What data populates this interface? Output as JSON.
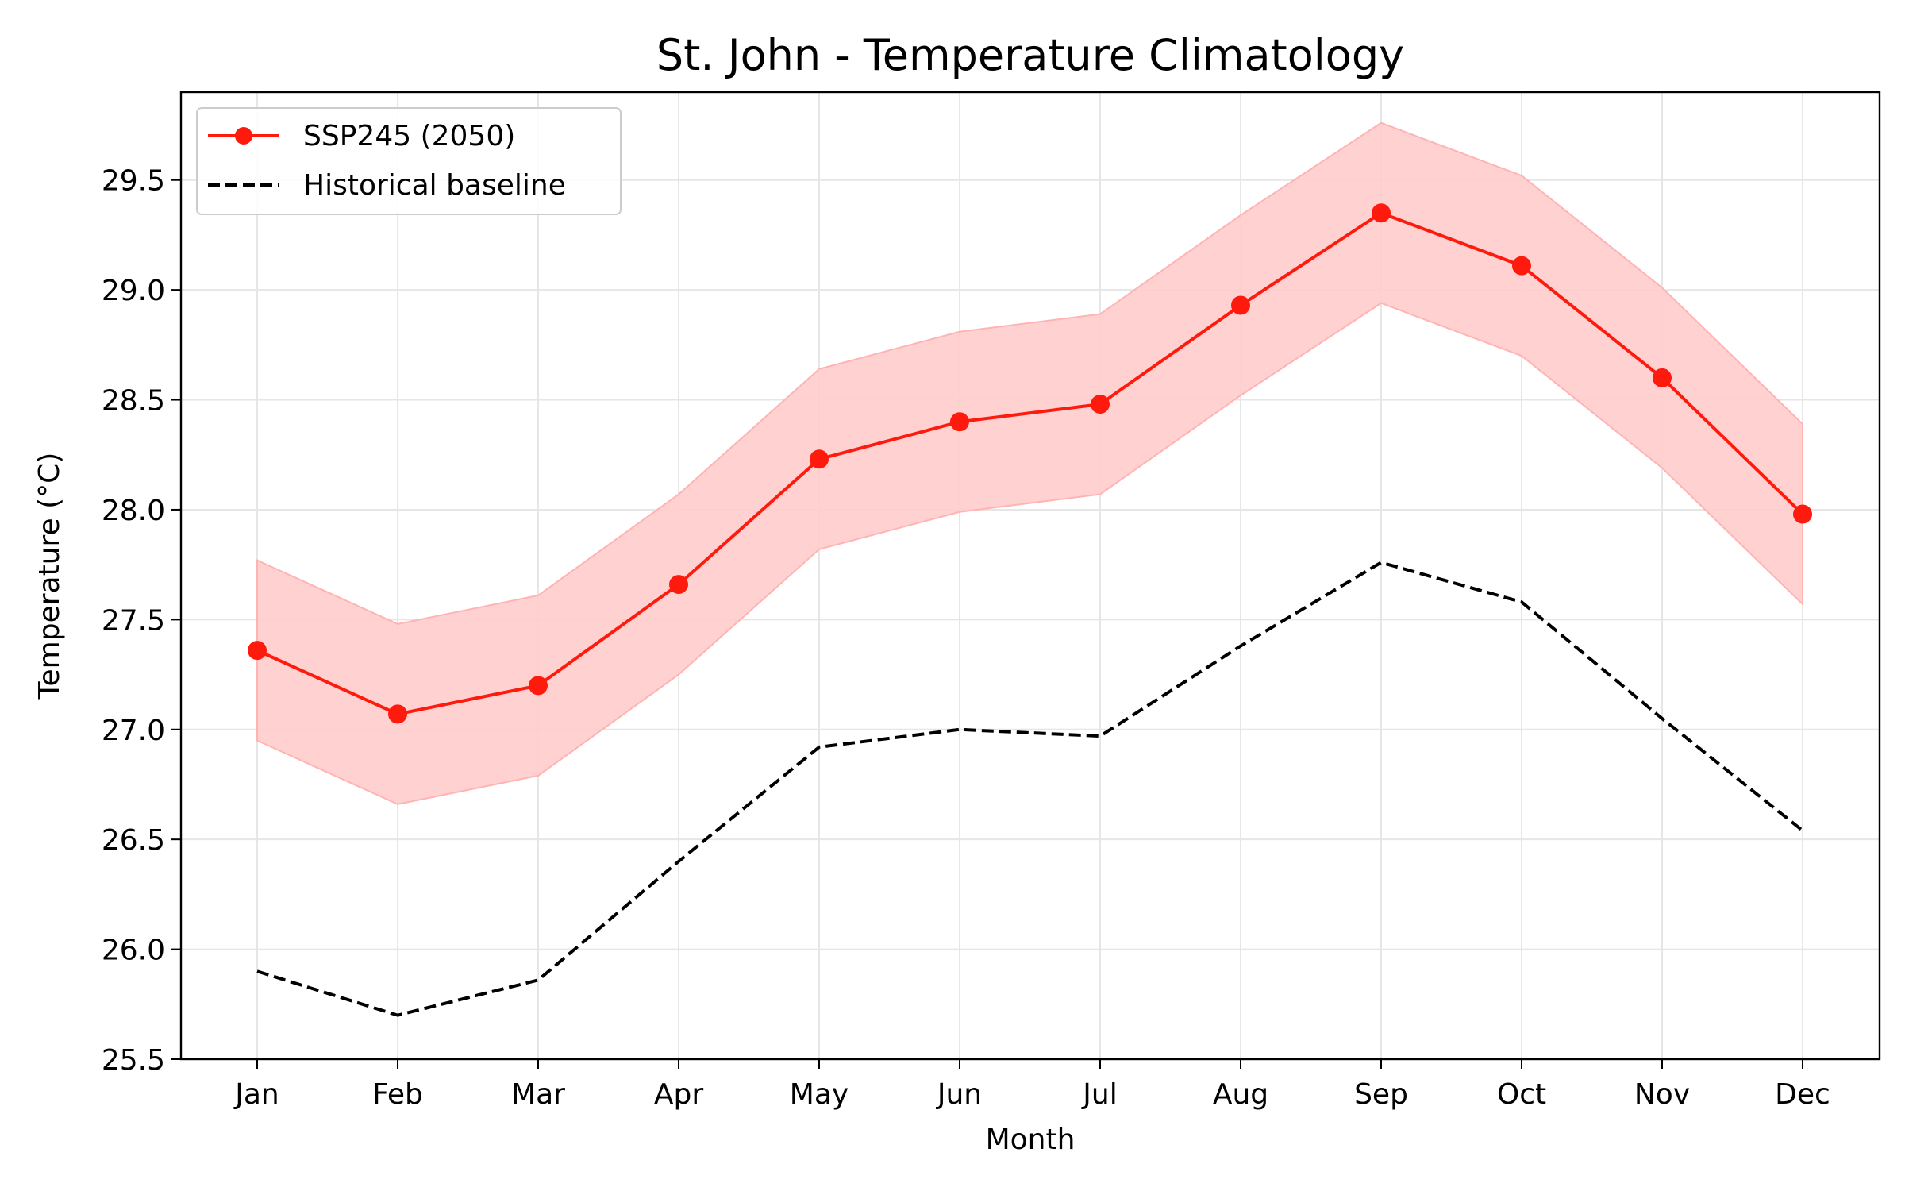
{
  "chart_data": {
    "type": "line",
    "title": "St. John - Temperature Climatology",
    "xlabel": "Month",
    "ylabel": "Temperature (°C)",
    "categories": [
      "Jan",
      "Feb",
      "Mar",
      "Apr",
      "May",
      "Jun",
      "Jul",
      "Aug",
      "Sep",
      "Oct",
      "Nov",
      "Dec"
    ],
    "ylim": [
      25.5,
      29.9
    ],
    "yticks": [
      "25.5",
      "26.0",
      "26.5",
      "27.0",
      "27.5",
      "28.0",
      "28.5",
      "29.0",
      "29.5"
    ],
    "grid": true,
    "legend_position": "top-left",
    "series": [
      {
        "name": "SSP245 (2050)",
        "style": "solid-marker",
        "color": "#ff1a0e",
        "values": [
          27.36,
          27.07,
          27.2,
          27.66,
          28.23,
          28.4,
          28.48,
          28.93,
          29.35,
          29.11,
          28.6,
          27.98
        ],
        "band_upper": [
          27.77,
          27.48,
          27.61,
          28.07,
          28.64,
          28.81,
          28.89,
          29.34,
          29.76,
          29.52,
          29.01,
          28.39
        ],
        "band_lower": [
          26.95,
          26.66,
          26.79,
          27.25,
          27.82,
          27.99,
          28.07,
          28.52,
          28.94,
          28.7,
          28.19,
          27.57
        ],
        "band_color": "#ffcccc"
      },
      {
        "name": "Historical baseline",
        "style": "dashed",
        "color": "#000000",
        "values": [
          25.9,
          25.7,
          25.86,
          26.4,
          26.92,
          27.0,
          26.97,
          27.38,
          27.76,
          27.58,
          27.05,
          26.54
        ]
      }
    ]
  }
}
